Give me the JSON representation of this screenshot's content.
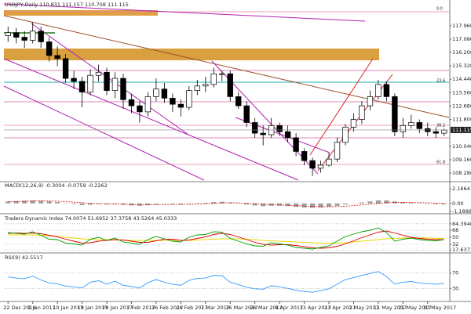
{
  "chart_data": [
    {
      "type": "candlestick",
      "title": "USDJPY,Daily  110.831 111.157 110.708 111.115",
      "categories": [
        "22 Dec 2016",
        null,
        null,
        "1 Jan 2017",
        null,
        null,
        "10 Jan 2017",
        null,
        null,
        "19 Jan 2017",
        null,
        null,
        "29 Jan 2017",
        null,
        null,
        "7 Feb 2017",
        null,
        null,
        "16 Feb 2017",
        null,
        null,
        "26 Feb 2017",
        null,
        null,
        "7 Mar 2017",
        null,
        null,
        "16 Mar 2017",
        null,
        null,
        "26 Mar 2017",
        null,
        null,
        "4 Apr 2017",
        null,
        null,
        "13 Apr 2017",
        null,
        null,
        "23 Apr 2017",
        null,
        null,
        "2 May 2017",
        null,
        null,
        "11 May 2017",
        null,
        null,
        "21 May 2017",
        null,
        null,
        "30 May 2017",
        null,
        null
      ],
      "open": [
        117.3,
        117.5,
        117.2,
        117.0,
        117.6,
        116.9,
        116.0,
        115.8,
        114.5,
        114.3,
        113.6,
        114.7,
        114.9,
        113.7,
        114.5,
        113.1,
        112.7,
        112.3,
        113.3,
        113.8,
        113.2,
        112.8,
        112.6,
        113.7,
        114.0,
        114.1,
        114.8,
        114.8,
        113.3,
        112.7,
        111.6,
        110.9,
        110.8,
        111.4,
        111.0,
        110.6,
        109.7,
        109.1,
        108.6,
        108.8,
        109.2,
        110.3,
        111.3,
        111.8,
        112.7,
        113.3,
        114.1,
        113.3,
        111.0,
        111.4,
        111.6,
        111.2,
        111.0,
        110.9
      ],
      "high": [
        117.9,
        117.8,
        117.6,
        118.2,
        117.9,
        117.2,
        116.6,
        116.1,
        115.0,
        114.6,
        115.1,
        115.4,
        115.2,
        114.9,
        114.8,
        113.5,
        113.0,
        113.6,
        114.5,
        114.2,
        113.5,
        113.1,
        114.0,
        114.4,
        114.6,
        115.2,
        115.0,
        115.0,
        113.6,
        113.0,
        111.9,
        111.4,
        111.9,
        111.6,
        111.4,
        110.9,
        109.9,
        109.3,
        109.1,
        109.6,
        110.6,
        111.5,
        112.2,
        113.0,
        113.7,
        114.4,
        114.3,
        113.5,
        111.9,
        112.1,
        111.8,
        111.6,
        111.3,
        111.2
      ],
      "low": [
        116.9,
        116.8,
        116.5,
        116.8,
        116.5,
        115.6,
        115.3,
        114.2,
        113.8,
        112.6,
        113.4,
        114.3,
        113.4,
        113.2,
        112.5,
        112.2,
        111.6,
        112.0,
        113.0,
        112.9,
        112.3,
        112.0,
        112.4,
        113.4,
        113.6,
        113.9,
        114.3,
        113.0,
        112.5,
        111.3,
        110.6,
        110.1,
        110.6,
        110.7,
        110.3,
        109.4,
        108.8,
        108.1,
        108.3,
        108.7,
        109.0,
        110.1,
        111.0,
        111.5,
        112.4,
        113.1,
        113.0,
        110.7,
        110.6,
        111.2,
        110.9,
        110.7,
        110.6,
        110.7
      ],
      "close": [
        117.5,
        117.2,
        117.0,
        117.6,
        116.9,
        116.0,
        115.8,
        114.5,
        114.3,
        113.6,
        114.7,
        114.9,
        113.7,
        114.5,
        113.1,
        112.7,
        112.3,
        113.3,
        113.8,
        113.2,
        112.8,
        112.6,
        113.7,
        114.0,
        114.1,
        114.8,
        114.8,
        113.3,
        112.7,
        111.6,
        110.9,
        110.8,
        111.4,
        111.0,
        110.6,
        109.7,
        109.1,
        108.6,
        108.8,
        109.2,
        110.3,
        111.3,
        111.8,
        112.7,
        113.3,
        114.1,
        113.3,
        111.0,
        111.4,
        111.6,
        111.2,
        111.0,
        110.9,
        111.1
      ],
      "ylim": [
        107.82,
        119.44
      ],
      "yticks": [
        {
          "value": 117.96,
          "label": "117.960"
        },
        {
          "value": 117.08,
          "label": "117.080"
        },
        {
          "value": 116.2,
          "label": "116.200"
        },
        {
          "value": 115.32,
          "label": "115.320"
        },
        {
          "value": 114.44,
          "label": "114.440"
        },
        {
          "value": 113.56,
          "label": "113.560"
        },
        {
          "value": 112.68,
          "label": "112.680"
        },
        {
          "value": 111.8,
          "label": "111.800"
        },
        {
          "value": 110.04,
          "label": "110.040"
        },
        {
          "value": 109.16,
          "label": "109.160"
        },
        {
          "value": 108.28,
          "label": "108.280"
        }
      ],
      "current_price": 111.115,
      "fib_labels": [
        "0.0",
        "23.6",
        "38.2",
        "61.8"
      ]
    },
    {
      "type": "macd",
      "title": "MACD(12,26,9) -0.3004 -0.0759 -0.2262",
      "histogram": [
        0.3,
        0.35,
        0.4,
        0.45,
        0.4,
        0.3,
        0.2,
        0.05,
        -0.1,
        -0.25,
        -0.2,
        -0.1,
        -0.15,
        -0.1,
        -0.2,
        -0.3,
        -0.35,
        -0.25,
        -0.1,
        -0.05,
        -0.1,
        -0.15,
        -0.05,
        0.05,
        0.1,
        0.2,
        0.25,
        0.15,
        0,
        -0.15,
        -0.3,
        -0.4,
        -0.35,
        -0.35,
        -0.4,
        -0.5,
        -0.6,
        -0.65,
        -0.6,
        -0.5,
        -0.35,
        -0.15,
        0,
        0.15,
        0.3,
        0.45,
        0.45,
        0.3,
        0.2,
        0.1,
        0.05,
        -0.05,
        -0.1,
        -0.15
      ],
      "signal": [
        0.25,
        0.28,
        0.32,
        0.36,
        0.38,
        0.36,
        0.33,
        0.27,
        0.19,
        0.1,
        0.03,
        -0.02,
        -0.06,
        -0.08,
        -0.11,
        -0.15,
        -0.2,
        -0.22,
        -0.2,
        -0.17,
        -0.15,
        -0.15,
        -0.13,
        -0.09,
        -0.05,
        0.02,
        0.08,
        0.1,
        0.08,
        0.03,
        -0.04,
        -0.12,
        -0.18,
        -0.22,
        -0.27,
        -0.32,
        -0.38,
        -0.44,
        -0.48,
        -0.49,
        -0.46,
        -0.4,
        -0.32,
        -0.22,
        -0.12,
        0,
        0.1,
        0.14,
        0.15,
        0.14,
        0.12,
        0.09,
        0.05,
        0.01
      ],
      "histogram_color": "#a0a0a0",
      "signal_color": "#e00000",
      "ylim": [
        -1.3,
        2.3
      ],
      "yticks": [
        2.1664,
        {
          "value": 0,
          "label": "0.00"
        },
        -1.1888
      ]
    },
    {
      "type": "line",
      "title": "Traders Dynamic Index 74.0074 51.6952 37.3758 43.5264 45.0333",
      "series": [
        {
          "color": "#e8d800",
          "values": [
            56,
            56,
            56,
            56,
            55,
            54,
            52,
            50,
            48,
            46,
            45,
            44,
            44,
            43,
            43,
            42,
            42,
            42,
            42,
            42,
            42,
            42,
            42,
            43,
            44,
            45,
            46,
            46,
            46,
            45,
            44,
            42,
            41,
            40,
            39,
            38,
            37,
            36,
            35,
            35,
            35,
            36,
            38,
            40,
            42,
            44,
            46,
            47,
            48,
            48,
            48,
            48,
            47,
            47
          ]
        },
        {
          "color": "#e00000",
          "values": [
            60,
            61,
            60,
            61,
            59,
            55,
            51,
            45,
            40,
            35,
            36,
            40,
            42,
            44,
            43,
            40,
            37,
            37,
            41,
            45,
            45,
            42,
            43,
            47,
            51,
            57,
            60,
            57,
            51,
            44,
            37,
            32,
            30,
            31,
            31,
            29,
            26,
            23,
            22,
            23,
            27,
            33,
            41,
            49,
            56,
            63,
            66,
            61,
            55,
            50,
            47,
            45,
            44,
            44
          ]
        },
        {
          "color": "#009a00",
          "values": [
            62,
            60,
            58,
            64,
            55,
            45,
            44,
            35,
            33,
            30,
            45,
            50,
            42,
            48,
            38,
            35,
            32,
            44,
            52,
            46,
            40,
            38,
            50,
            56,
            57,
            64,
            63,
            47,
            40,
            33,
            28,
            27,
            36,
            33,
            30,
            24,
            22,
            20,
            24,
            28,
            40,
            52,
            58,
            64,
            68,
            74,
            62,
            40,
            45,
            48,
            44,
            42,
            41,
            44
          ]
        }
      ],
      "ylim": [
        14,
        88
      ],
      "yticks": [
        84.3946,
        68,
        50,
        32,
        17.6371
      ]
    },
    {
      "type": "line",
      "title": "RSI(9) 42.5517",
      "series": [
        {
          "color": "#3399ff",
          "values": [
            60,
            57,
            55,
            62,
            52,
            44,
            42,
            36,
            34,
            31,
            46,
            50,
            41,
            49,
            38,
            35,
            31,
            45,
            53,
            46,
            41,
            38,
            51,
            56,
            57,
            64,
            63,
            46,
            40,
            33,
            29,
            28,
            37,
            34,
            30,
            25,
            22,
            20,
            24,
            29,
            41,
            53,
            58,
            64,
            69,
            74,
            61,
            41,
            46,
            48,
            44,
            42,
            41,
            43
          ]
        }
      ],
      "ylim": [
        0,
        100
      ],
      "yticks": [
        70,
        30
      ]
    }
  ]
}
